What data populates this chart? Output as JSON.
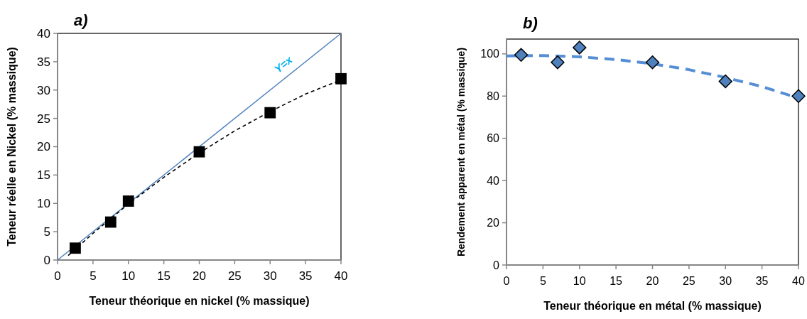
{
  "chart_data": [
    {
      "type": "scatter",
      "title": "a)",
      "xlabel": "Teneur théorique en nickel (% massique)",
      "ylabel": "Teneur réelle en Nickel (% massique)",
      "xlim": [
        0,
        40
      ],
      "ylim": [
        0,
        40
      ],
      "xticks": [
        0,
        5,
        10,
        15,
        20,
        25,
        30,
        35,
        40
      ],
      "yticks": [
        0,
        5,
        10,
        15,
        20,
        25,
        30,
        35,
        40
      ],
      "annotations": [
        {
          "text": "Y=x",
          "x": 33,
          "y": 33
        }
      ],
      "series": [
        {
          "type": "line",
          "color": "#4f81bd",
          "x": [
            0,
            40
          ],
          "values": [
            0,
            40
          ],
          "line_style": "solid"
        },
        {
          "type": "line",
          "color": "#000000",
          "x": [
            1.5,
            5,
            10,
            15,
            20,
            25,
            30,
            35,
            40
          ],
          "values": [
            0.8,
            4.7,
            9.9,
            14.6,
            18.9,
            22.8,
            26.2,
            29.3,
            31.8
          ],
          "line_style": "dashed"
        },
        {
          "color": "#000000",
          "x": [
            2.5,
            7.5,
            10,
            20,
            30,
            40
          ],
          "values": [
            2.1,
            6.7,
            10.4,
            19.1,
            26,
            32
          ],
          "marker": "square"
        }
      ]
    },
    {
      "type": "scatter",
      "title": "b)",
      "xlabel": "Teneur théorique en métal (% massique)",
      "ylabel": "Rendement apparent en métal (% massique)",
      "xlim": [
        0,
        40
      ],
      "ylim": [
        0,
        107
      ],
      "xticks": [
        0,
        5,
        10,
        15,
        20,
        25,
        30,
        35,
        40
      ],
      "yticks": [
        0,
        20,
        40,
        60,
        80,
        100
      ],
      "series": [
        {
          "type": "line",
          "color": "#558ed5",
          "x": [
            0,
            5,
            10,
            15,
            20,
            25,
            30,
            35,
            40
          ],
          "values": [
            99,
            99.2,
            98.6,
            97.3,
            95.3,
            92.5,
            88.8,
            84.5,
            79
          ],
          "line_style": "dashed"
        },
        {
          "color": "#4f81bd",
          "x": [
            2,
            7,
            10,
            20,
            30,
            40
          ],
          "values": [
            99.5,
            96,
            103,
            96,
            87,
            80
          ],
          "marker": "diamond"
        }
      ]
    }
  ]
}
